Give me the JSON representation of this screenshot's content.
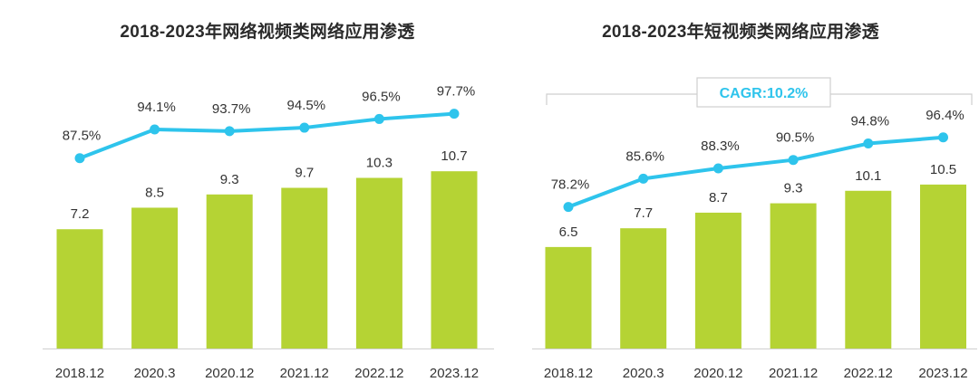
{
  "colors": {
    "bar": "#b5d334",
    "line": "#2ec4ec",
    "axis": "#cfcfcf",
    "text": "#333333",
    "cagr": "#2ec4ec",
    "bracket": "#cfcfcf"
  },
  "chart_data": [
    {
      "type": "bar",
      "title": "2018-2023年网络视频类网络应用渗透",
      "categories": [
        "2018.12",
        "2020.3",
        "2020.12",
        "2021.12",
        "2022.12",
        "2023.12"
      ],
      "series": [
        {
          "type": "bar",
          "values": [
            7.2,
            8.5,
            9.3,
            9.7,
            10.3,
            10.7
          ],
          "labels": [
            "7.2",
            "8.5",
            "9.3",
            "9.7",
            "10.3",
            "10.7"
          ]
        },
        {
          "type": "line",
          "values": [
            87.5,
            94.1,
            93.7,
            94.5,
            96.5,
            97.7
          ],
          "labels": [
            "87.5%",
            "94.1%",
            "93.7%",
            "94.5%",
            "96.5%",
            "97.7%"
          ]
        }
      ],
      "annotation": ""
    },
    {
      "type": "bar",
      "title": "2018-2023年短视频类网络应用渗透",
      "categories": [
        "2018.12",
        "2020.3",
        "2020.12",
        "2021.12",
        "2022.12",
        "2023.12"
      ],
      "series": [
        {
          "type": "bar",
          "values": [
            6.5,
            7.7,
            8.7,
            9.3,
            10.1,
            10.5
          ],
          "labels": [
            "6.5",
            "7.7",
            "8.7",
            "9.3",
            "10.1",
            "10.5"
          ]
        },
        {
          "type": "line",
          "values": [
            78.2,
            85.6,
            88.3,
            90.5,
            94.8,
            96.4
          ],
          "labels": [
            "78.2%",
            "85.6%",
            "88.3%",
            "90.5%",
            "94.8%",
            "96.4%"
          ]
        }
      ],
      "annotation": "CAGR:10.2%"
    }
  ]
}
